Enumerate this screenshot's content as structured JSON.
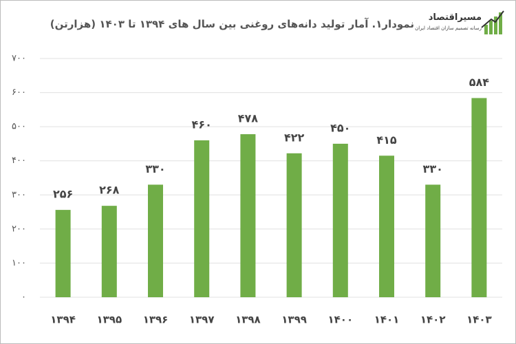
{
  "logo": {
    "name": "مسیراقتصاد",
    "tagline": "رسانه تصمیم سازان اقتصاد ایران"
  },
  "chart_data": {
    "type": "bar",
    "title": "نمودار۱. آمار تولید دانه‌های روغنی بین سال های ۱۳۹۴ تا ۱۴۰۳ (هزارتن)",
    "categories": [
      "۱۳۹۴",
      "۱۳۹۵",
      "۱۳۹۶",
      "۱۳۹۷",
      "۱۳۹۸",
      "۱۳۹۹",
      "۱۴۰۰",
      "۱۴۰۱",
      "۱۴۰۲",
      "۱۴۰۳"
    ],
    "values": [
      256,
      268,
      330,
      460,
      478,
      422,
      450,
      415,
      330,
      584
    ],
    "value_labels": [
      "۲۵۶",
      "۲۶۸",
      "۳۳۰",
      "۴۶۰",
      "۴۷۸",
      "۴۲۲",
      "۴۵۰",
      "۴۱۵",
      "۳۳۰",
      "۵۸۴"
    ],
    "color": "#70ad47",
    "ylim": [
      0,
      700
    ],
    "yticks": [
      {
        "value": 0,
        "label": "۰"
      },
      {
        "value": 100,
        "label": "۱۰۰"
      },
      {
        "value": 200,
        "label": "۲۰۰"
      },
      {
        "value": 300,
        "label": "۳۰۰"
      },
      {
        "value": 400,
        "label": "۴۰۰"
      },
      {
        "value": 500,
        "label": "۵۰۰"
      },
      {
        "value": 600,
        "label": "۶۰۰"
      },
      {
        "value": 700,
        "label": "۷۰۰"
      }
    ],
    "grid": true
  }
}
